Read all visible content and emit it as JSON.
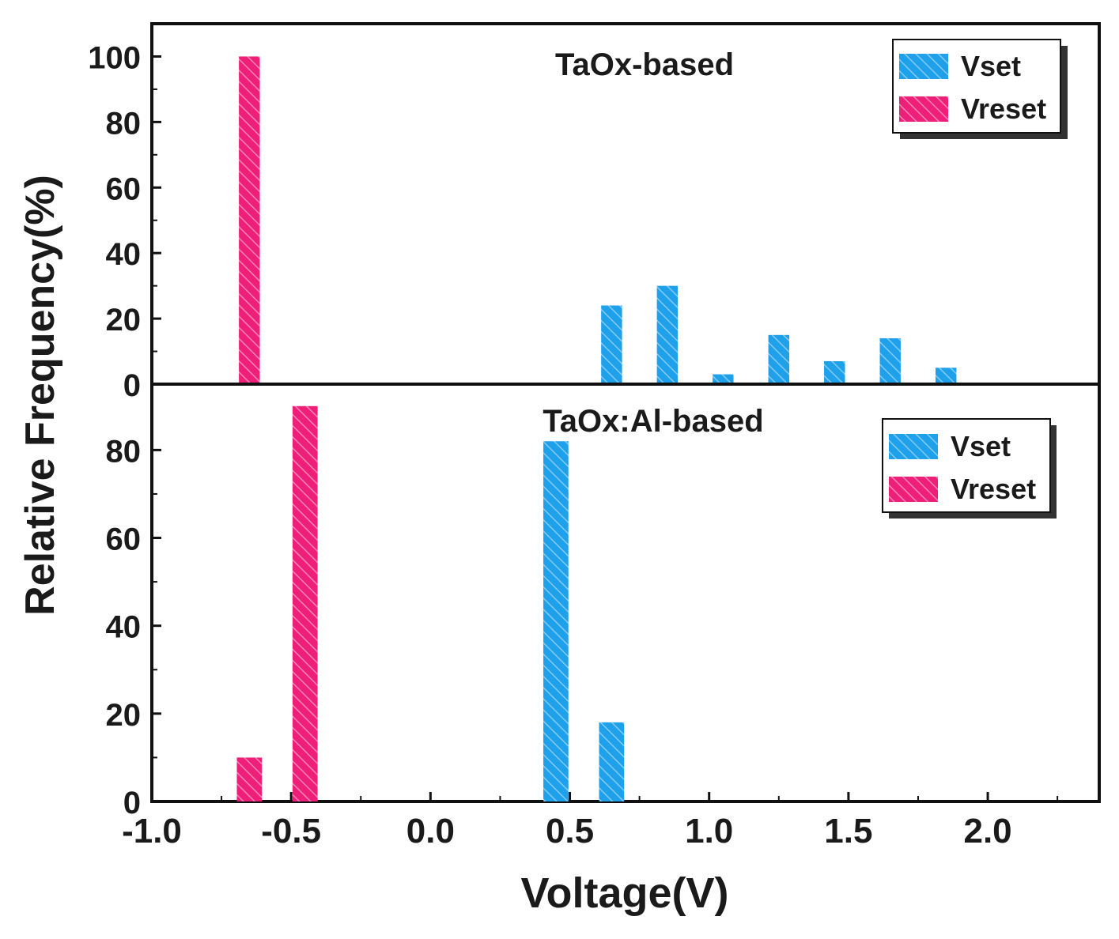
{
  "figure": {
    "ylabel": "Relative Frequency(%)",
    "xlabel": "Voltage(V)"
  },
  "colors": {
    "vset": "#1fa0ea",
    "vreset": "#ee1f79",
    "axis": "#111111"
  },
  "chart_data": [
    {
      "type": "bar",
      "title": "TaOx-based",
      "xlabel": "Voltage(V)",
      "ylabel": "Relative Frequency(%)",
      "xlim": [
        -1.0,
        2.4
      ],
      "ylim": [
        0,
        110
      ],
      "yticks": [
        0,
        20,
        40,
        60,
        80,
        100
      ],
      "xticks": [],
      "legend": {
        "position": "top-right",
        "entries": [
          "Vset",
          "Vreset"
        ]
      },
      "bar_width": 0.075,
      "series": [
        {
          "name": "Vset",
          "color_key": "vset",
          "x": [
            0.65,
            0.85,
            1.05,
            1.25,
            1.45,
            1.65,
            1.85
          ],
          "values": [
            24,
            30,
            3,
            15,
            7,
            14,
            5
          ]
        },
        {
          "name": "Vreset",
          "color_key": "vreset",
          "x": [
            -0.65
          ],
          "values": [
            100
          ]
        }
      ]
    },
    {
      "type": "bar",
      "title": "TaOx:Al-based",
      "xlabel": "Voltage(V)",
      "ylabel": "Relative Frequency(%)",
      "xlim": [
        -1.0,
        2.4
      ],
      "ylim": [
        0,
        95
      ],
      "yticks": [
        0,
        20,
        40,
        60,
        80
      ],
      "xticks": [
        "-1.0",
        "-0.5",
        "0.0",
        "0.5",
        "1.0",
        "1.5",
        "2.0"
      ],
      "legend": {
        "position": "top-right",
        "entries": [
          "Vset",
          "Vreset"
        ]
      },
      "bar_width": 0.09,
      "series": [
        {
          "name": "Vset",
          "color_key": "vset",
          "x": [
            0.45,
            0.65
          ],
          "values": [
            82,
            18
          ]
        },
        {
          "name": "Vreset",
          "color_key": "vreset",
          "x": [
            -0.65,
            -0.45
          ],
          "values": [
            10,
            90
          ]
        }
      ]
    }
  ]
}
